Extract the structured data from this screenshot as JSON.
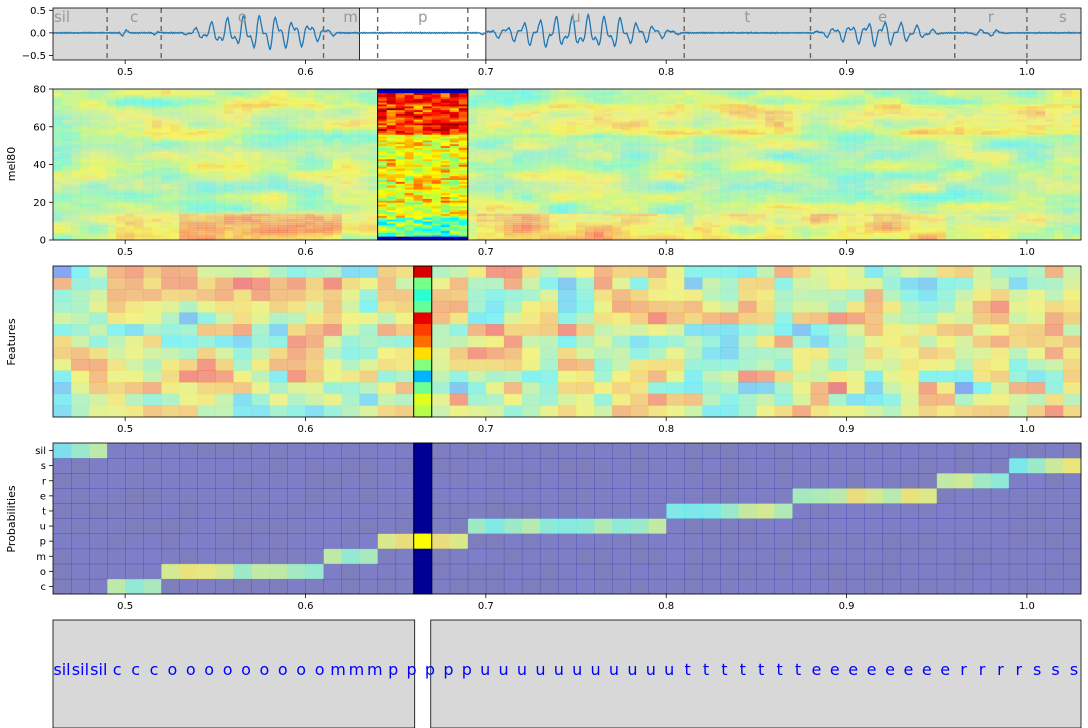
{
  "chart_data": [
    {
      "type": "line",
      "panel": "waveform",
      "xlim": [
        0.46,
        1.03
      ],
      "ylim": [
        -0.6,
        0.55
      ],
      "yticks": [
        0.5,
        0.0,
        -0.5
      ],
      "ytick_labels": [
        "0.5",
        "0.0",
        "−0.5"
      ],
      "xticks": [
        0.5,
        0.6,
        0.7,
        0.8,
        0.9,
        1.0
      ],
      "xtick_labels": [
        "0.5",
        "0.6",
        "0.7",
        "0.8",
        "0.9",
        "1.0"
      ],
      "segment_boundaries": [
        0.49,
        0.52,
        0.61,
        0.64,
        0.69,
        0.81,
        0.88,
        0.96,
        1.0
      ],
      "segment_labels": [
        {
          "label": "sil",
          "x": 0.465
        },
        {
          "label": "c",
          "x": 0.505
        },
        {
          "label": "o",
          "x": 0.565
        },
        {
          "label": "m",
          "x": 0.625
        },
        {
          "label": "p",
          "x": 0.665
        },
        {
          "label": "u",
          "x": 0.75
        },
        {
          "label": "t",
          "x": 0.845
        },
        {
          "label": "e",
          "x": 0.92
        },
        {
          "label": "r",
          "x": 0.98
        },
        {
          "label": "s",
          "x": 1.02
        }
      ],
      "highlight_range": [
        0.63,
        0.7
      ],
      "line_color": "#1f77b4",
      "voiced_regions": [
        {
          "from": 0.497,
          "to": 0.503,
          "amp": 0.12
        },
        {
          "from": 0.515,
          "to": 0.521,
          "amp": 0.1
        },
        {
          "from": 0.53,
          "to": 0.62,
          "amp": 0.45
        },
        {
          "from": 0.695,
          "to": 0.81,
          "amp": 0.45
        },
        {
          "from": 0.88,
          "to": 0.955,
          "amp": 0.32
        },
        {
          "from": 0.965,
          "to": 0.99,
          "amp": 0.1
        }
      ]
    },
    {
      "type": "heatmap",
      "panel": "mel-spectrogram",
      "ylabel": "mel80",
      "xlim": [
        0.46,
        1.03
      ],
      "ylim": [
        0,
        80
      ],
      "yticks": [
        0,
        20,
        40,
        60,
        80
      ],
      "xticks": [
        0.5,
        0.6,
        0.7,
        0.8,
        0.9,
        1.0
      ],
      "xtick_labels": [
        "0.5",
        "0.6",
        "0.7",
        "0.8",
        "0.9",
        "1.0"
      ],
      "highlight_range": [
        0.64,
        0.69
      ],
      "colormap": "jet"
    },
    {
      "type": "heatmap",
      "panel": "features",
      "ylabel": "Features",
      "xlim": [
        0.46,
        1.03
      ],
      "xticks": [
        0.5,
        0.6,
        0.7,
        0.8,
        0.9,
        1.0
      ],
      "xtick_labels": [
        "0.5",
        "0.6",
        "0.7",
        "0.8",
        "0.9",
        "1.0"
      ],
      "highlight_range": [
        0.66,
        0.67
      ],
      "rows": 13,
      "frame_step": 0.01,
      "colormap": "jet"
    },
    {
      "type": "heatmap",
      "panel": "probabilities",
      "ylabel": "Probabilities",
      "xlim": [
        0.46,
        1.03
      ],
      "xticks": [
        0.5,
        0.6,
        0.7,
        0.8,
        0.9,
        1.0
      ],
      "xtick_labels": [
        "0.5",
        "0.6",
        "0.7",
        "0.8",
        "0.9",
        "1.0"
      ],
      "categories": [
        "sil",
        "s",
        "r",
        "e",
        "t",
        "u",
        "p",
        "m",
        "o",
        "c"
      ],
      "highlight_range": [
        0.66,
        0.67
      ],
      "frame_step": 0.01,
      "colormap": "jet"
    },
    {
      "type": "table",
      "panel": "frame-labels",
      "text_color": "#0000ff",
      "highlight_range": [
        0.66,
        0.67
      ],
      "labels": [
        "sil",
        "sil",
        "sil",
        "c",
        "c",
        "c",
        "o",
        "o",
        "o",
        "o",
        "o",
        "o",
        "o",
        "o",
        "o",
        "m",
        "m",
        "m",
        "p",
        "p",
        "p",
        "p",
        "p",
        "u",
        "u",
        "u",
        "u",
        "u",
        "u",
        "u",
        "u",
        "u",
        "u",
        "u",
        "t",
        "t",
        "t",
        "t",
        "t",
        "t",
        "t",
        "e",
        "e",
        "e",
        "e",
        "e",
        "e",
        "e",
        "e",
        "r",
        "r",
        "r",
        "r",
        "s",
        "s",
        "s"
      ]
    }
  ]
}
